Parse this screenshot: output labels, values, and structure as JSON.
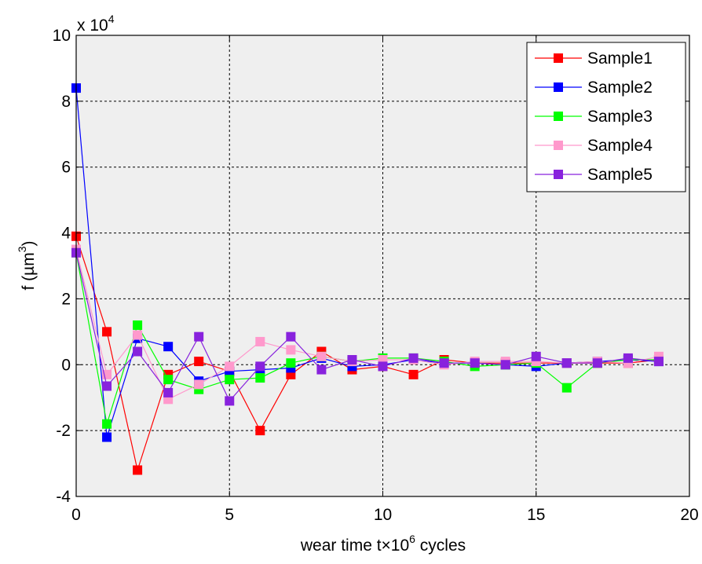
{
  "chart_data": {
    "type": "line",
    "title": "",
    "xlabel": "wear time t×10",
    "xlabel_superscript": "6",
    "xlabel_suffix": " cycles",
    "ylabel": "f (µm",
    "ylabel_superscript": "3",
    "ylabel_suffix": ")",
    "y_multiplier": "x 10",
    "y_multiplier_exponent": "4",
    "xlim": [
      0,
      20
    ],
    "ylim": [
      -4,
      10
    ],
    "x_ticks": [
      0,
      5,
      10,
      15,
      20
    ],
    "y_ticks": [
      -4,
      -2,
      0,
      2,
      4,
      6,
      8,
      10
    ],
    "grid": true,
    "grid_style": "dotted",
    "legend_position": "top-right",
    "plot_background": "#efefef",
    "x": [
      0,
      1,
      2,
      3,
      4,
      5,
      6,
      7,
      8,
      9,
      10,
      11,
      12,
      13,
      14,
      15,
      16,
      17,
      18,
      19
    ],
    "series": [
      {
        "name": "Sample1",
        "color": "#ff0000",
        "values": [
          3.9,
          1.0,
          -3.2,
          -0.3,
          0.1,
          -0.2,
          -2.0,
          -0.3,
          0.4,
          -0.15,
          -0.05,
          -0.3,
          0.15,
          0.05,
          0.05,
          0.05,
          0.05,
          0.05,
          0.05,
          0.15
        ]
      },
      {
        "name": "Sample2",
        "color": "#0000ff",
        "values": [
          8.4,
          -2.2,
          0.8,
          0.55,
          -0.5,
          -0.2,
          -0.15,
          -0.1,
          0.2,
          -0.05,
          0.0,
          0.15,
          0.05,
          0.05,
          0.0,
          -0.05,
          0.05,
          0.1,
          0.15,
          0.1
        ]
      },
      {
        "name": "Sample3",
        "color": "#00ff00",
        "values": [
          3.4,
          -1.8,
          1.2,
          -0.45,
          -0.75,
          -0.45,
          -0.4,
          0.05,
          0.25,
          0.1,
          0.2,
          0.2,
          0.1,
          -0.05,
          0.0,
          0.05,
          -0.7,
          0.05,
          0.15,
          0.15
        ]
      },
      {
        "name": "Sample4",
        "color": "#ff99cc",
        "values": [
          3.5,
          -0.3,
          0.9,
          -1.05,
          -0.6,
          -0.05,
          0.7,
          0.45,
          0.25,
          0.1,
          0.15,
          0.15,
          0.0,
          0.1,
          0.1,
          0.1,
          0.05,
          0.1,
          0.05,
          0.25
        ]
      },
      {
        "name": "Sample5",
        "color": "#8822dd",
        "values": [
          3.4,
          -0.65,
          0.4,
          -0.85,
          0.85,
          -1.1,
          -0.05,
          0.85,
          -0.15,
          0.15,
          -0.05,
          0.2,
          0.05,
          0.05,
          0.0,
          0.25,
          0.05,
          0.05,
          0.2,
          0.1
        ]
      }
    ]
  }
}
